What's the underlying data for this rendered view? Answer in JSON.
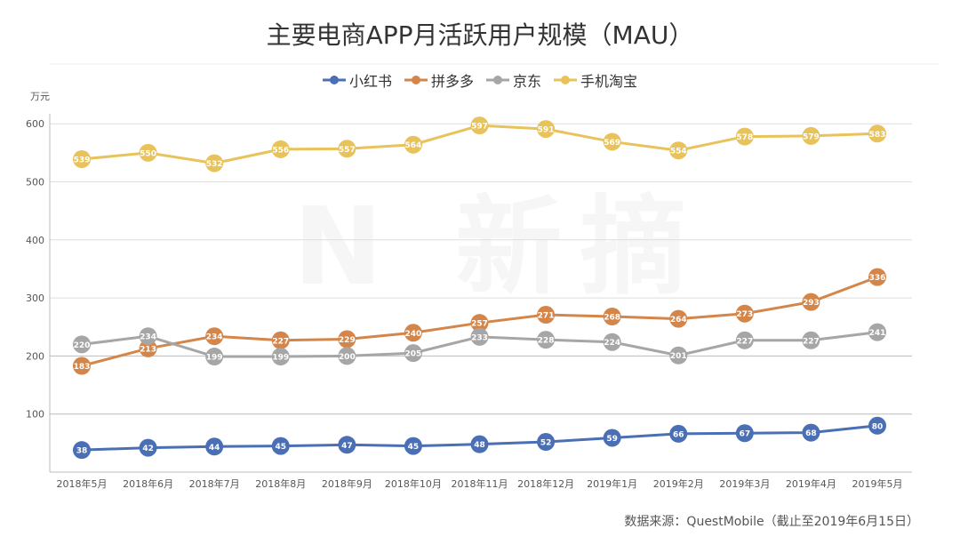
{
  "chart_data": {
    "type": "line",
    "title": "主要电商APP月活跃用户规模（MAU）",
    "ylabel": "万元",
    "ylim": [
      0,
      620
    ],
    "yticks": [
      100,
      200,
      300,
      400,
      500,
      600
    ],
    "grid": true,
    "legend_position": "top",
    "categories": [
      "2018年5月",
      "2018年6月",
      "2018年7月",
      "2018年8月",
      "2018年9月",
      "2018年10月",
      "2018年11月",
      "2018年12月",
      "2019年1月",
      "2019年2月",
      "2019年3月",
      "2019年4月",
      "2019年5月"
    ],
    "series": [
      {
        "name": "小红书",
        "color": "#4a6fb5",
        "values": [
          38,
          42,
          44,
          45,
          47,
          45,
          48,
          52,
          59,
          66,
          67,
          68,
          80
        ]
      },
      {
        "name": "拼多多",
        "color": "#d4864a",
        "values": [
          183,
          213,
          234,
          227,
          229,
          240,
          257,
          271,
          268,
          264,
          273,
          293,
          336
        ]
      },
      {
        "name": "京东",
        "color": "#a6a6a6",
        "values": [
          220,
          234,
          199,
          199,
          200,
          205,
          233,
          228,
          224,
          201,
          227,
          227,
          241
        ]
      },
      {
        "name": "手机淘宝",
        "color": "#e8c25a",
        "values": [
          539,
          550,
          532,
          556,
          557,
          564,
          597,
          591,
          569,
          554,
          578,
          579,
          583
        ]
      }
    ],
    "source": "数据来源：QuestMobile（截止至2019年6月15日）"
  }
}
